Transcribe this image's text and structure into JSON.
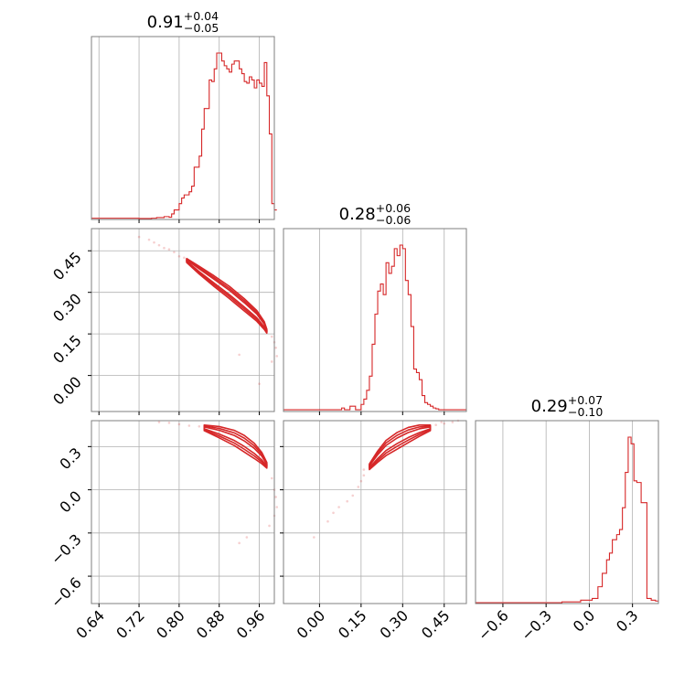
{
  "chart_data": {
    "type": "corner",
    "color": "#d62728",
    "parameters": [
      {
        "title": {
          "median": "0.91",
          "upper": "+0.04",
          "lower": "−0.05"
        },
        "range": [
          0.625,
          0.99
        ],
        "ticks": [
          "0.64",
          "0.72",
          "0.80",
          "0.88",
          "0.96"
        ],
        "tick_values": [
          0.64,
          0.72,
          0.8,
          0.88,
          0.96
        ],
        "hist": [
          [
            0.625,
            0.008
          ],
          [
            0.705,
            0.008
          ],
          [
            0.72,
            0.006
          ],
          [
            0.745,
            0.008
          ],
          [
            0.755,
            0.012
          ],
          [
            0.77,
            0.018
          ],
          [
            0.78,
            0.014
          ],
          [
            0.785,
            0.035
          ],
          [
            0.79,
            0.06
          ],
          [
            0.8,
            0.1
          ],
          [
            0.805,
            0.135
          ],
          [
            0.81,
            0.155
          ],
          [
            0.82,
            0.175
          ],
          [
            0.825,
            0.21
          ],
          [
            0.83,
            0.33
          ],
          [
            0.84,
            0.4
          ],
          [
            0.845,
            0.57
          ],
          [
            0.85,
            0.7
          ],
          [
            0.86,
            0.88
          ],
          [
            0.865,
            0.87
          ],
          [
            0.87,
            0.95
          ],
          [
            0.875,
            1.05
          ],
          [
            0.88,
            1.05
          ],
          [
            0.885,
            1.0
          ],
          [
            0.89,
            0.97
          ],
          [
            0.895,
            0.95
          ],
          [
            0.9,
            0.93
          ],
          [
            0.905,
            0.98
          ],
          [
            0.91,
            1.0
          ],
          [
            0.915,
            1.0
          ],
          [
            0.92,
            0.95
          ],
          [
            0.925,
            0.92
          ],
          [
            0.93,
            0.87
          ],
          [
            0.935,
            0.86
          ],
          [
            0.94,
            0.9
          ],
          [
            0.945,
            0.88
          ],
          [
            0.95,
            0.83
          ],
          [
            0.955,
            0.88
          ],
          [
            0.96,
            0.86
          ],
          [
            0.965,
            0.84
          ],
          [
            0.97,
            0.99
          ],
          [
            0.975,
            0.78
          ],
          [
            0.98,
            0.54
          ],
          [
            0.985,
            0.1
          ],
          [
            0.99,
            0.06
          ]
        ],
        "hist_end": 0.995
      },
      {
        "title": {
          "median": "0.28",
          "upper": "+0.06",
          "lower": "−0.06"
        },
        "range": [
          -0.13,
          0.53
        ],
        "ticks": [
          "0.00",
          "0.15",
          "0.30",
          "0.45"
        ],
        "tick_values": [
          0.0,
          0.15,
          0.3,
          0.45
        ],
        "hist": [
          [
            -0.13,
            0.01
          ],
          [
            0.08,
            0.02
          ],
          [
            0.09,
            0.01
          ],
          [
            0.11,
            0.03
          ],
          [
            0.13,
            0.01
          ],
          [
            0.15,
            0.04
          ],
          [
            0.16,
            0.07
          ],
          [
            0.17,
            0.12
          ],
          [
            0.18,
            0.2
          ],
          [
            0.19,
            0.38
          ],
          [
            0.2,
            0.55
          ],
          [
            0.21,
            0.68
          ],
          [
            0.22,
            0.72
          ],
          [
            0.23,
            0.66
          ],
          [
            0.24,
            0.84
          ],
          [
            0.25,
            0.78
          ],
          [
            0.26,
            0.82
          ],
          [
            0.27,
            0.92
          ],
          [
            0.28,
            0.88
          ],
          [
            0.29,
            0.94
          ],
          [
            0.3,
            0.92
          ],
          [
            0.31,
            0.74
          ],
          [
            0.32,
            0.66
          ],
          [
            0.33,
            0.48
          ],
          [
            0.34,
            0.24
          ],
          [
            0.35,
            0.22
          ],
          [
            0.36,
            0.18
          ],
          [
            0.37,
            0.09
          ],
          [
            0.38,
            0.05
          ],
          [
            0.39,
            0.04
          ],
          [
            0.4,
            0.03
          ],
          [
            0.41,
            0.02
          ],
          [
            0.42,
            0.015
          ],
          [
            0.43,
            0.01
          ]
        ],
        "hist_end": 0.53
      },
      {
        "title": {
          "median": "0.29",
          "upper": "+0.07",
          "lower": "−0.10"
        },
        "range": [
          -0.79,
          0.48
        ],
        "ticks": [
          "−0.6",
          "−0.3",
          "0.0",
          "0.3"
        ],
        "tick_values": [
          -0.6,
          -0.3,
          0.0,
          0.3
        ],
        "hist": [
          [
            -0.79,
            0.005
          ],
          [
            -0.19,
            0.01
          ],
          [
            -0.1,
            0.01
          ],
          [
            -0.06,
            0.02
          ],
          [
            -0.02,
            0.02
          ],
          [
            0.02,
            0.03
          ],
          [
            0.06,
            0.1
          ],
          [
            0.09,
            0.18
          ],
          [
            0.12,
            0.26
          ],
          [
            0.14,
            0.3
          ],
          [
            0.16,
            0.38
          ],
          [
            0.19,
            0.41
          ],
          [
            0.21,
            0.44
          ],
          [
            0.23,
            0.57
          ],
          [
            0.25,
            0.78
          ],
          [
            0.27,
            0.99
          ],
          [
            0.29,
            0.95
          ],
          [
            0.31,
            0.73
          ],
          [
            0.33,
            0.72
          ],
          [
            0.36,
            0.6
          ],
          [
            0.4,
            0.03
          ],
          [
            0.43,
            0.02
          ],
          [
            0.46,
            0.015
          ]
        ],
        "hist_end": 0.48
      }
    ],
    "contours": {
      "1-0": {
        "spine": [
          [
            0.815,
            0.415
          ],
          [
            0.84,
            0.38
          ],
          [
            0.87,
            0.34
          ],
          [
            0.9,
            0.3
          ],
          [
            0.93,
            0.255
          ],
          [
            0.955,
            0.215
          ],
          [
            0.97,
            0.18
          ],
          [
            0.975,
            0.16
          ]
        ],
        "widths": [
          0.016,
          0.03,
          0.045
        ],
        "scatter": [
          [
            0.72,
            0.5
          ],
          [
            0.74,
            0.49
          ],
          [
            0.76,
            0.47
          ],
          [
            0.78,
            0.455
          ],
          [
            0.79,
            0.445
          ],
          [
            0.8,
            0.43
          ],
          [
            0.81,
            0.425
          ],
          [
            0.985,
            0.14
          ],
          [
            0.99,
            0.12
          ],
          [
            0.993,
            0.1
          ],
          [
            0.995,
            0.07
          ],
          [
            0.92,
            0.075
          ],
          [
            0.96,
            -0.03
          ],
          [
            0.77,
            0.46
          ],
          [
            0.75,
            0.48
          ],
          [
            0.985,
            0.05
          ]
        ]
      },
      "2-0": {
        "spine": [
          [
            0.85,
            0.43
          ],
          [
            0.88,
            0.4
          ],
          [
            0.91,
            0.36
          ],
          [
            0.93,
            0.32
          ],
          [
            0.95,
            0.27
          ],
          [
            0.965,
            0.22
          ],
          [
            0.975,
            0.17
          ]
        ],
        "widths": [
          0.02,
          0.04,
          0.06
        ],
        "scatter": [
          [
            0.76,
            0.47
          ],
          [
            0.78,
            0.465
          ],
          [
            0.8,
            0.455
          ],
          [
            0.82,
            0.445
          ],
          [
            0.84,
            0.44
          ],
          [
            0.985,
            0.08
          ],
          [
            0.99,
            0.0
          ],
          [
            0.993,
            -0.05
          ],
          [
            0.995,
            -0.12
          ],
          [
            0.99,
            -0.18
          ],
          [
            0.92,
            -0.37
          ],
          [
            0.935,
            -0.33
          ],
          [
            0.98,
            -0.25
          ]
        ]
      },
      "2-1": {
        "spine": [
          [
            0.18,
            0.16
          ],
          [
            0.21,
            0.23
          ],
          [
            0.24,
            0.29
          ],
          [
            0.28,
            0.34
          ],
          [
            0.32,
            0.38
          ],
          [
            0.36,
            0.41
          ],
          [
            0.4,
            0.43
          ]
        ],
        "widths": [
          0.02,
          0.04,
          0.06
        ],
        "scatter": [
          [
            0.42,
            0.45
          ],
          [
            0.45,
            0.46
          ],
          [
            0.48,
            0.47
          ],
          [
            0.5,
            0.48
          ],
          [
            0.16,
            0.1
          ],
          [
            0.15,
            0.06
          ],
          [
            0.14,
            0.02
          ],
          [
            0.12,
            -0.04
          ],
          [
            0.1,
            -0.08
          ],
          [
            0.07,
            -0.12
          ],
          [
            0.05,
            -0.16
          ],
          [
            -0.02,
            -0.33
          ],
          [
            0.03,
            -0.22
          ],
          [
            0.16,
            0.14
          ],
          [
            0.44,
            0.47
          ]
        ]
      }
    },
    "panel_yranges": {
      "1": [
        -0.13,
        0.53
      ],
      "2": [
        -0.79,
        0.48
      ]
    },
    "grid": true
  }
}
